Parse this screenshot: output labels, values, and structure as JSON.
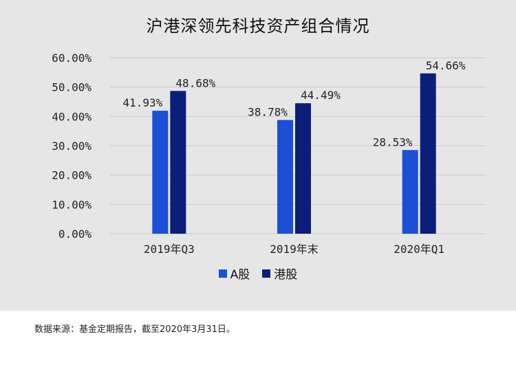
{
  "title": "沪港深领先科技资产组合情况",
  "source": "数据来源：基金定期报告，截至2020年3月31日。",
  "colors": {
    "a_share": "#1a4fd6",
    "hk_share": "#0b1f7a",
    "grid": "#c8c8c8",
    "background": "#e6e6e6"
  },
  "chart_data": {
    "type": "bar",
    "categories": [
      "2019年Q3",
      "2019年末",
      "2020年Q1"
    ],
    "series": [
      {
        "name": "A股",
        "values": [
          41.93,
          38.78,
          28.53
        ],
        "labels": [
          "41.93%",
          "38.78%",
          "28.53%"
        ]
      },
      {
        "name": "港股",
        "values": [
          48.68,
          44.49,
          54.66
        ],
        "labels": [
          "48.68%",
          "44.49%",
          "54.66%"
        ]
      }
    ],
    "ylim": [
      0,
      60
    ],
    "yticks": [
      "0.00%",
      "10.00%",
      "20.00%",
      "30.00%",
      "40.00%",
      "50.00%",
      "60.00%"
    ],
    "grid": true,
    "legend_position": "bottom"
  }
}
